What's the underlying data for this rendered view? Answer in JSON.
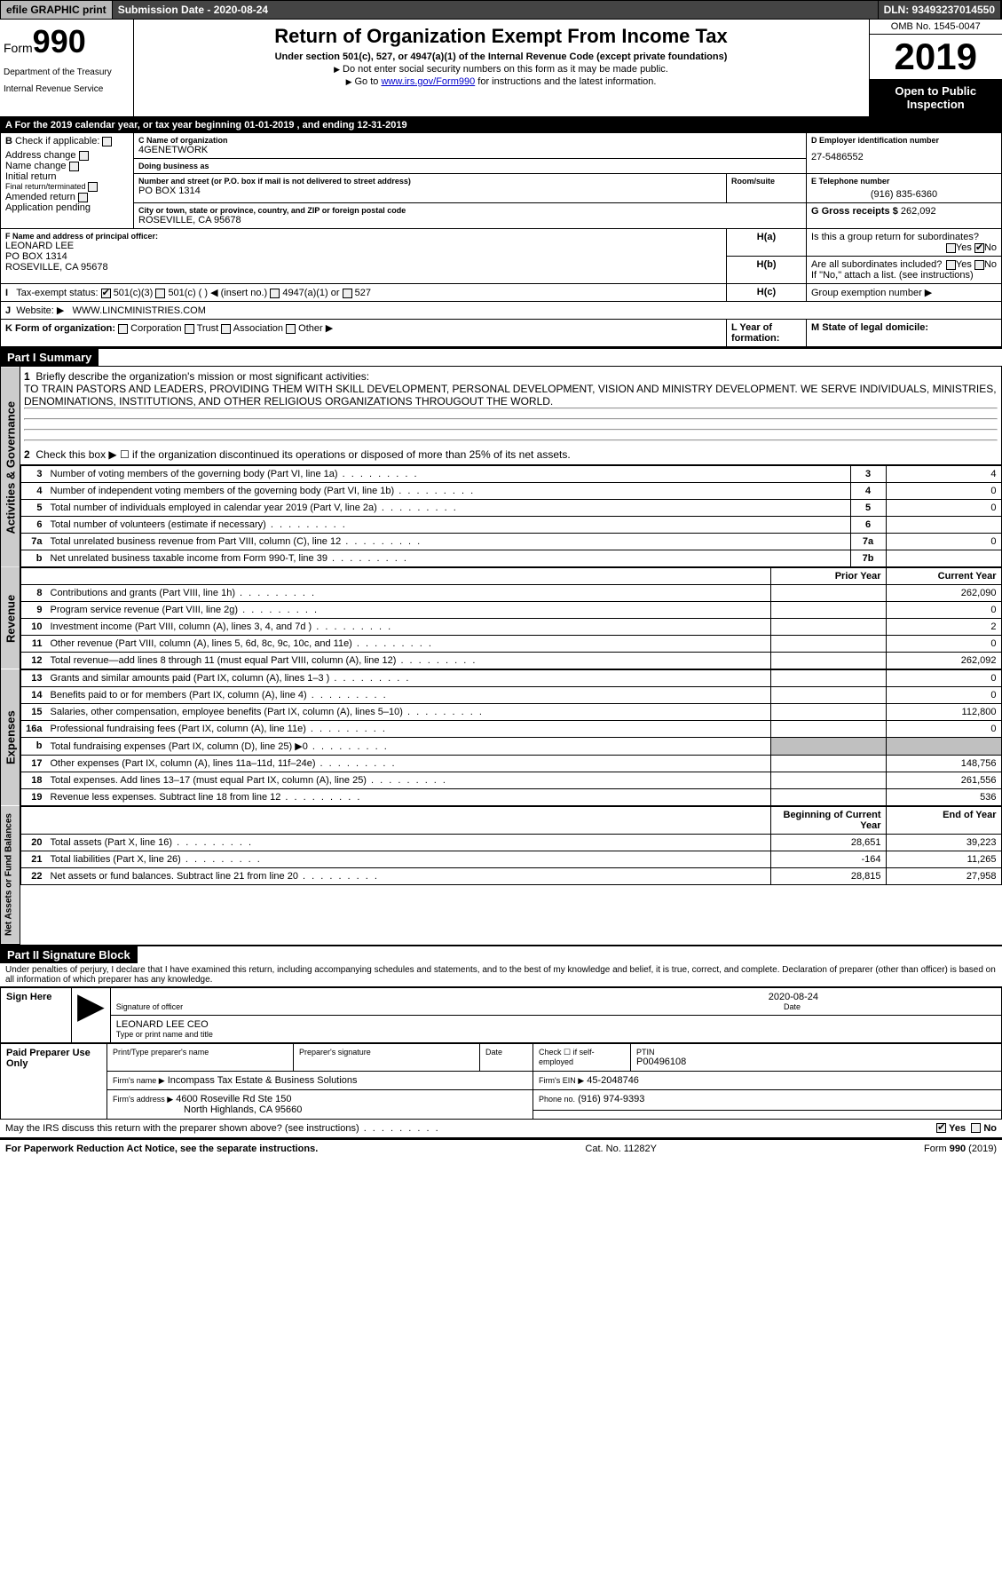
{
  "topbar": {
    "efile": "efile GRAPHIC print",
    "submission": "Submission Date - 2020-08-24",
    "dln": "DLN: 93493237014550"
  },
  "header": {
    "form_prefix": "Form",
    "form_num": "990",
    "dept1": "Department of the Treasury",
    "dept2": "Internal Revenue Service",
    "title": "Return of Organization Exempt From Income Tax",
    "subtitle": "Under section 501(c), 527, or 4947(a)(1) of the Internal Revenue Code (except private foundations)",
    "line1": "Do not enter social security numbers on this form as it may be made public.",
    "line2_pre": "Go to ",
    "line2_link": "www.irs.gov/Form990",
    "line2_post": " for instructions and the latest information.",
    "omb": "OMB No. 1545-0047",
    "year": "2019",
    "open": "Open to Public Inspection"
  },
  "period": "A   For the 2019 calendar year, or tax year beginning 01-01-2019        , and ending 12-31-2019",
  "sectionB": {
    "label": "Check if applicable:",
    "items": [
      "Address change",
      "Name change",
      "Initial return",
      "Final return/terminated",
      "Amended return",
      "Application pending"
    ]
  },
  "sectionC": {
    "name_lbl": "C Name of organization",
    "name": "4GENETWORK",
    "dba_lbl": "Doing business as",
    "dba": "",
    "addr_lbl": "Number and street (or P.O. box if mail is not delivered to street address)",
    "addr": "PO BOX 1314",
    "room_lbl": "Room/suite",
    "city_lbl": "City or town, state or province, country, and ZIP or foreign postal code",
    "city": "ROSEVILLE, CA  95678"
  },
  "sectionD": {
    "lbl": "D Employer identification number",
    "val": "27-5486552"
  },
  "sectionE": {
    "lbl": "E Telephone number",
    "val": "(916) 835-6360"
  },
  "sectionF": {
    "lbl": "F  Name and address of principal officer:",
    "name": "LEONARD LEE",
    "addr1": "PO BOX 1314",
    "addr2": "ROSEVILLE, CA  95678"
  },
  "sectionG": {
    "lbl": "G Gross receipts $",
    "val": "262,092"
  },
  "sectionH": {
    "a": "Is this a group return for subordinates?",
    "b": "Are all subordinates included?",
    "b_note": "If \"No,\" attach a list. (see instructions)",
    "c": "Group exemption number ▶"
  },
  "sectionI": {
    "lbl": "Tax-exempt status:",
    "opts": [
      "501(c)(3)",
      "501(c) (  ) ◀ (insert no.)",
      "4947(a)(1) or",
      "527"
    ]
  },
  "sectionJ": {
    "lbl": "Website: ▶",
    "val": "WWW.LINCMINISTRIES.COM"
  },
  "sectionK": {
    "lbl": "K Form of organization:",
    "opts": [
      "Corporation",
      "Trust",
      "Association",
      "Other ▶"
    ]
  },
  "sectionL": "L Year of formation:",
  "sectionM": "M State of legal domicile:",
  "part1": {
    "hdr": "Part I      Summary",
    "tabs": {
      "ag": "Activities & Governance",
      "rev": "Revenue",
      "exp": "Expenses",
      "nab": "Net Assets or Fund Balances"
    },
    "q1_lbl": "Briefly describe the organization's mission or most significant activities:",
    "q1_val": "TO TRAIN PASTORS AND LEADERS, PROVIDING THEM WITH SKILL DEVELOPMENT, PERSONAL DEVELOPMENT, VISION AND MINISTRY DEVELOPMENT. WE SERVE INDIVIDUALS, MINISTRIES, DENOMINATIONS, INSTITUTIONS, AND OTHER RELIGIOUS ORGANIZATIONS THROUGOUT THE WORLD.",
    "q2": "Check this box ▶ ☐  if the organization discontinued its operations or disposed of more than 25% of its net assets.",
    "rows_ag": [
      {
        "n": "3",
        "t": "Number of voting members of the governing body (Part VI, line 1a)",
        "b": "3",
        "v": "4"
      },
      {
        "n": "4",
        "t": "Number of independent voting members of the governing body (Part VI, line 1b)",
        "b": "4",
        "v": "0"
      },
      {
        "n": "5",
        "t": "Total number of individuals employed in calendar year 2019 (Part V, line 2a)",
        "b": "5",
        "v": "0"
      },
      {
        "n": "6",
        "t": "Total number of volunteers (estimate if necessary)",
        "b": "6",
        "v": ""
      },
      {
        "n": "7a",
        "t": "Total unrelated business revenue from Part VIII, column (C), line 12",
        "b": "7a",
        "v": "0"
      },
      {
        "n": "b",
        "t": "Net unrelated business taxable income from Form 990-T, line 39",
        "b": "7b",
        "v": ""
      }
    ],
    "col_prior": "Prior Year",
    "col_curr": "Current Year",
    "rows_rev": [
      {
        "n": "8",
        "t": "Contributions and grants (Part VIII, line 1h)",
        "p": "",
        "c": "262,090"
      },
      {
        "n": "9",
        "t": "Program service revenue (Part VIII, line 2g)",
        "p": "",
        "c": "0"
      },
      {
        "n": "10",
        "t": "Investment income (Part VIII, column (A), lines 3, 4, and 7d )",
        "p": "",
        "c": "2"
      },
      {
        "n": "11",
        "t": "Other revenue (Part VIII, column (A), lines 5, 6d, 8c, 9c, 10c, and 11e)",
        "p": "",
        "c": "0"
      },
      {
        "n": "12",
        "t": "Total revenue—add lines 8 through 11 (must equal Part VIII, column (A), line 12)",
        "p": "",
        "c": "262,092"
      }
    ],
    "rows_exp": [
      {
        "n": "13",
        "t": "Grants and similar amounts paid (Part IX, column (A), lines 1–3 )",
        "p": "",
        "c": "0"
      },
      {
        "n": "14",
        "t": "Benefits paid to or for members (Part IX, column (A), line 4)",
        "p": "",
        "c": "0"
      },
      {
        "n": "15",
        "t": "Salaries, other compensation, employee benefits (Part IX, column (A), lines 5–10)",
        "p": "",
        "c": "112,800"
      },
      {
        "n": "16a",
        "t": "Professional fundraising fees (Part IX, column (A), line 11e)",
        "p": "",
        "c": "0"
      },
      {
        "n": "b",
        "t": "Total fundraising expenses (Part IX, column (D), line 25) ▶0",
        "p": "shade",
        "c": "shade"
      },
      {
        "n": "17",
        "t": "Other expenses (Part IX, column (A), lines 11a–11d, 11f–24e)",
        "p": "",
        "c": "148,756"
      },
      {
        "n": "18",
        "t": "Total expenses. Add lines 13–17 (must equal Part IX, column (A), line 25)",
        "p": "",
        "c": "261,556"
      },
      {
        "n": "19",
        "t": "Revenue less expenses. Subtract line 18 from line 12",
        "p": "",
        "c": "536"
      }
    ],
    "col_beg": "Beginning of Current Year",
    "col_end": "End of Year",
    "rows_nab": [
      {
        "n": "20",
        "t": "Total assets (Part X, line 16)",
        "p": "28,651",
        "c": "39,223"
      },
      {
        "n": "21",
        "t": "Total liabilities (Part X, line 26)",
        "p": "-164",
        "c": "11,265"
      },
      {
        "n": "22",
        "t": "Net assets or fund balances. Subtract line 21 from line 20",
        "p": "28,815",
        "c": "27,958"
      }
    ]
  },
  "part2": {
    "hdr": "Part II      Signature Block",
    "perjury": "Under penalties of perjury, I declare that I have examined this return, including accompanying schedules and statements, and to the best of my knowledge and belief, it is true, correct, and complete. Declaration of preparer (other than officer) is based on all information of which preparer has any knowledge.",
    "sign_here": "Sign Here",
    "sig_officer": "Signature of officer",
    "sig_date": "2020-08-24",
    "date_lbl": "Date",
    "officer_name": "LEONARD LEE  CEO",
    "type_name": "Type or print name and title",
    "paid": "Paid Preparer Use Only",
    "prep_name_lbl": "Print/Type preparer's name",
    "prep_sig_lbl": "Preparer's signature",
    "prep_date_lbl": "Date",
    "check_self": "Check ☐ if self-employed",
    "ptin_lbl": "PTIN",
    "ptin": "P00496108",
    "firm_name_lbl": "Firm's name     ▶",
    "firm_name": "Incompass Tax Estate & Business Solutions",
    "firm_ein_lbl": "Firm's EIN ▶",
    "firm_ein": "45-2048746",
    "firm_addr_lbl": "Firm's address ▶",
    "firm_addr1": "4600 Roseville Rd Ste 150",
    "firm_addr2": "North Highlands, CA  95660",
    "phone_lbl": "Phone no.",
    "phone": "(916) 974-9393",
    "discuss": "May the IRS discuss this return with the preparer shown above? (see instructions)"
  },
  "footer": {
    "left": "For Paperwork Reduction Act Notice, see the separate instructions.",
    "mid": "Cat. No. 11282Y",
    "right": "Form 990 (2019)"
  },
  "yn": {
    "yes": "Yes",
    "no": "No"
  }
}
